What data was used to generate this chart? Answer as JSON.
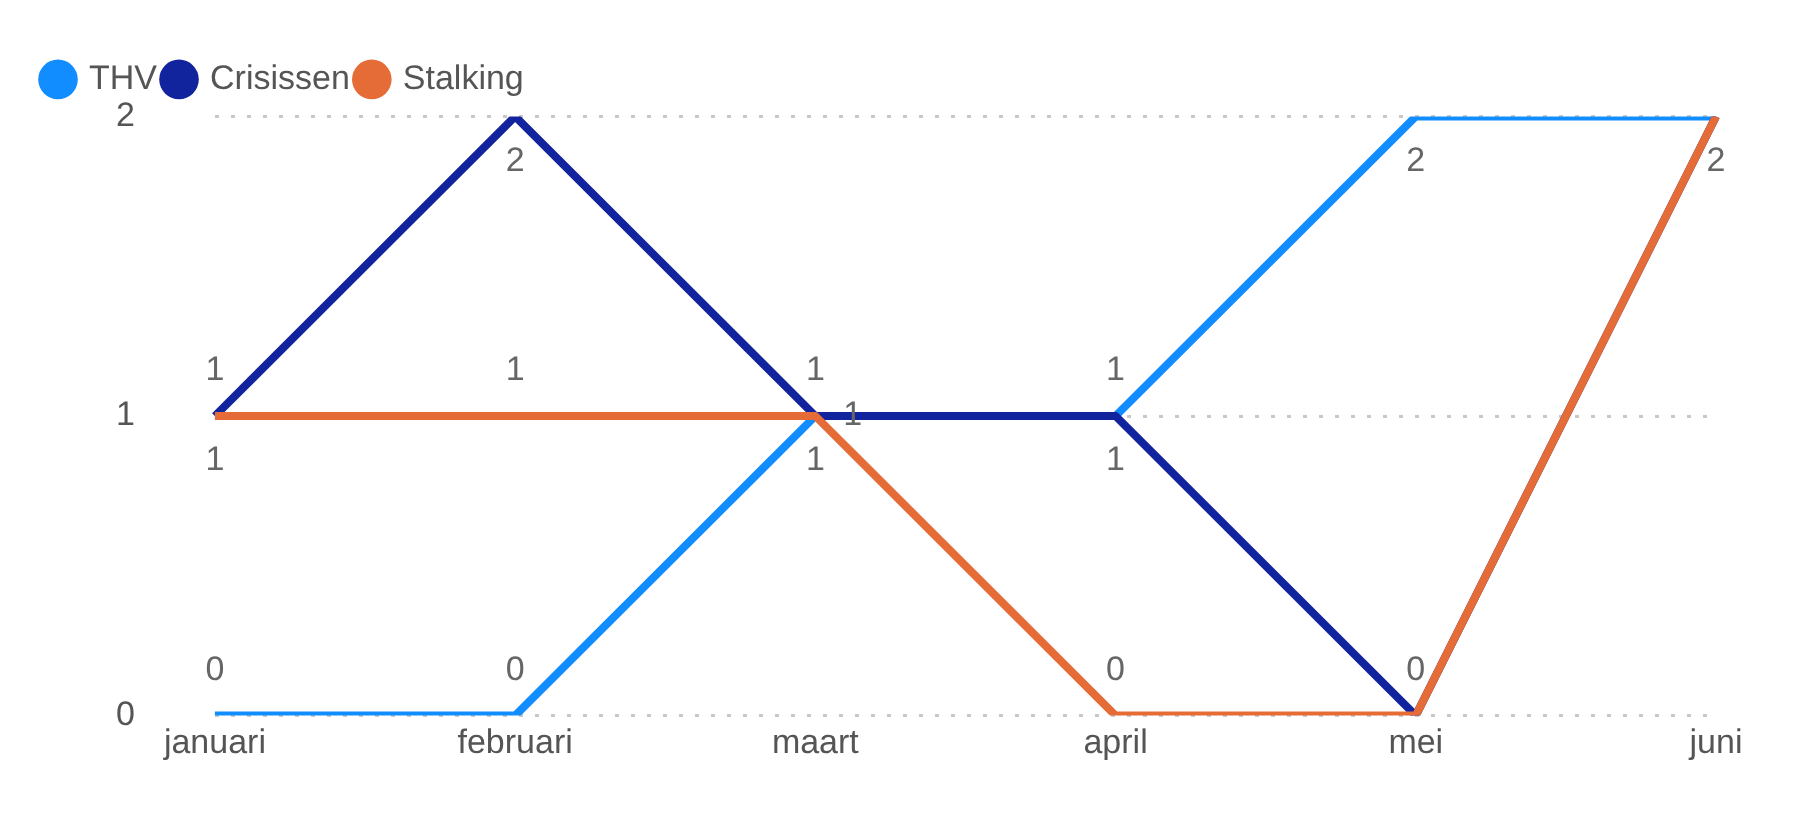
{
  "chart_data": {
    "type": "line",
    "categories": [
      "januari",
      "februari",
      "maart",
      "april",
      "mei",
      "juni"
    ],
    "series": [
      {
        "name": "THV",
        "color": "#118dff",
        "values": [
          0,
          0,
          1,
          1,
          2,
          2
        ],
        "value_labels": [
          "0",
          "0",
          "1",
          "1",
          "2",
          null
        ]
      },
      {
        "name": "Crisissen",
        "color": "#12239e",
        "values": [
          1,
          2,
          1,
          1,
          0,
          2
        ],
        "value_labels": [
          "1",
          "2",
          "1",
          "1",
          "0",
          "2"
        ]
      },
      {
        "name": "Stalking",
        "color": "#e66c37",
        "values": [
          1,
          1,
          1,
          0,
          0,
          2
        ],
        "value_labels": [
          "1",
          "1",
          "1",
          "0",
          null,
          null
        ]
      }
    ],
    "ylim": [
      0,
      2
    ],
    "yticks": [
      0,
      1,
      2
    ],
    "grid": "y",
    "legend": "top left",
    "marker": "none",
    "line_style": "solid"
  }
}
